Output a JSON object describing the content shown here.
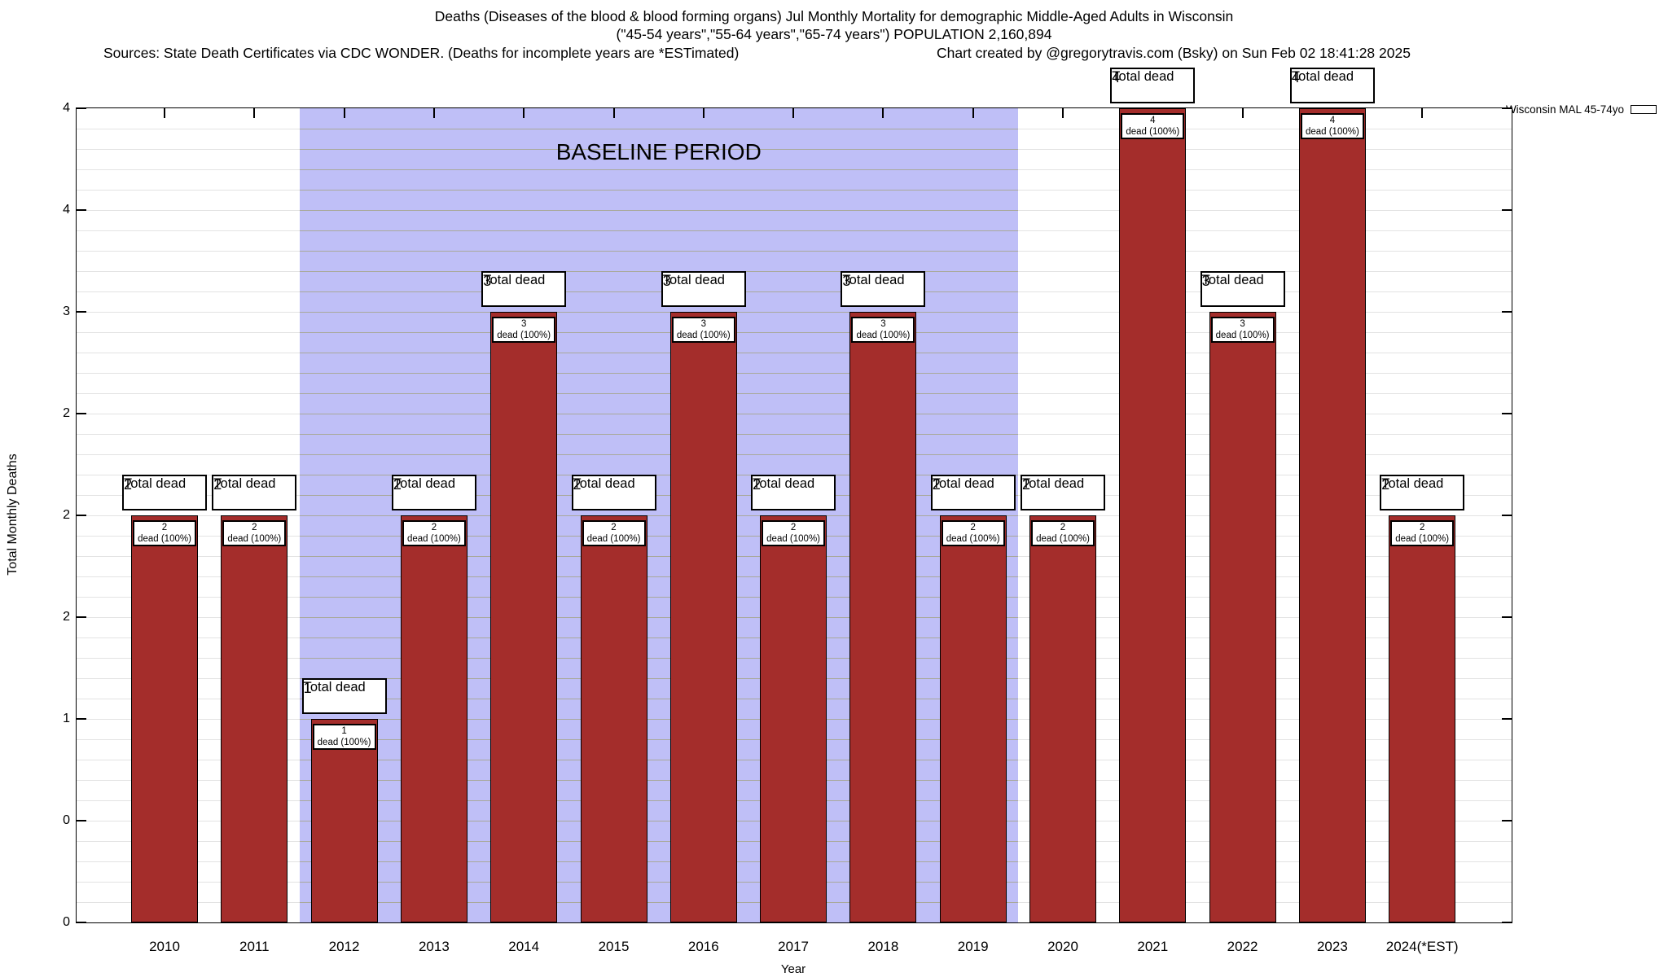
{
  "header": {
    "title": "Deaths (Diseases of the blood & blood forming organs) Jul Monthly Mortality for demographic Middle-Aged Adults in Wisconsin",
    "subtitle": "(\"45-54 years\",\"55-64 years\",\"65-74 years\") POPULATION 2,160,894",
    "sources": "Sources: State Death Certificates via CDC WONDER. (Deaths for incomplete years are *ESTimated)",
    "credit": "Chart created by @gregorytravis.com (Bsky) on Sun Feb 02 18:41:28 2025"
  },
  "legend": {
    "label": "Wisconsin MAL 45-74yo",
    "position": "top-right"
  },
  "chart_data": {
    "type": "bar",
    "title": "Deaths (Diseases of the blood & blood forming organs) Jul Monthly Mortality for demographic Middle-Aged Adults in Wisconsin",
    "xlabel": "Year",
    "ylabel": "Total Monthly Deaths",
    "ylim": [
      0,
      4
    ],
    "y_major_tick_interval": 0.5,
    "y_minor_grid_interval": 0.1,
    "y_tick_labels_top_to_bottom": [
      "4",
      "4",
      "3",
      "2",
      "2",
      "2",
      "1",
      "0",
      "0"
    ],
    "grid": true,
    "legend_entries": [
      "Wisconsin MAL 45-74yo"
    ],
    "categories": [
      "2010",
      "2011",
      "2012",
      "2013",
      "2014",
      "2015",
      "2016",
      "2017",
      "2018",
      "2019",
      "2020",
      "2021",
      "2022",
      "2023",
      "2024(*EST)"
    ],
    "values": [
      2,
      2,
      1,
      2,
      3,
      2,
      3,
      2,
      3,
      2,
      2,
      4,
      3,
      4,
      2
    ],
    "bars": [
      {
        "year": "2010",
        "value": 2,
        "outer_value": "2",
        "outer_label": "Total dead",
        "inner_value": "2",
        "inner_label": "dead (100%)"
      },
      {
        "year": "2011",
        "value": 2,
        "outer_value": "2",
        "outer_label": "Total dead",
        "inner_value": "2",
        "inner_label": "dead (100%)"
      },
      {
        "year": "2012",
        "value": 1,
        "outer_value": "1",
        "outer_label": "Total dead",
        "inner_value": "1",
        "inner_label": "dead (100%)"
      },
      {
        "year": "2013",
        "value": 2,
        "outer_value": "2",
        "outer_label": "Total dead",
        "inner_value": "2",
        "inner_label": "dead (100%)"
      },
      {
        "year": "2014",
        "value": 3,
        "outer_value": "3",
        "outer_label": "Total dead",
        "inner_value": "3",
        "inner_label": "dead (100%)"
      },
      {
        "year": "2015",
        "value": 2,
        "outer_value": "2",
        "outer_label": "Total dead",
        "inner_value": "2",
        "inner_label": "dead (100%)"
      },
      {
        "year": "2016",
        "value": 3,
        "outer_value": "3",
        "outer_label": "Total dead",
        "inner_value": "3",
        "inner_label": "dead (100%)"
      },
      {
        "year": "2017",
        "value": 2,
        "outer_value": "2",
        "outer_label": "Total dead",
        "inner_value": "2",
        "inner_label": "dead (100%)"
      },
      {
        "year": "2018",
        "value": 3,
        "outer_value": "3",
        "outer_label": "Total dead",
        "inner_value": "3",
        "inner_label": "dead (100%)"
      },
      {
        "year": "2019",
        "value": 2,
        "outer_value": "2",
        "outer_label": "Total dead",
        "inner_value": "2",
        "inner_label": "dead (100%)"
      },
      {
        "year": "2020",
        "value": 2,
        "outer_value": "2",
        "outer_label": "Total dead",
        "inner_value": "2",
        "inner_label": "dead (100%)"
      },
      {
        "year": "2021",
        "value": 4,
        "outer_value": "4",
        "outer_label": "Total dead",
        "inner_value": "4",
        "inner_label": "dead (100%)"
      },
      {
        "year": "2022",
        "value": 3,
        "outer_value": "3",
        "outer_label": "Total dead",
        "inner_value": "3",
        "inner_label": "dead (100%)"
      },
      {
        "year": "2023",
        "value": 4,
        "outer_value": "4",
        "outer_label": "Total dead",
        "inner_value": "4",
        "inner_label": "dead (100%)"
      },
      {
        "year": "2024(*EST)",
        "value": 2,
        "outer_value": "2",
        "outer_label": "Total dead",
        "inner_value": "2",
        "inner_label": "dead (100%)"
      }
    ],
    "baseline_region": {
      "label": "BASELINE PERIOD",
      "x_start_year": 2011.5,
      "x_end_year": 2019.5
    },
    "colors": {
      "bar": "#A42D2B",
      "bar_border": "#000000",
      "baseline_fill": "#BFBFF7",
      "grid_on_white": "#E3E3E3",
      "grid_on_baseline": "#A9A99B",
      "axis": "#000000"
    }
  }
}
